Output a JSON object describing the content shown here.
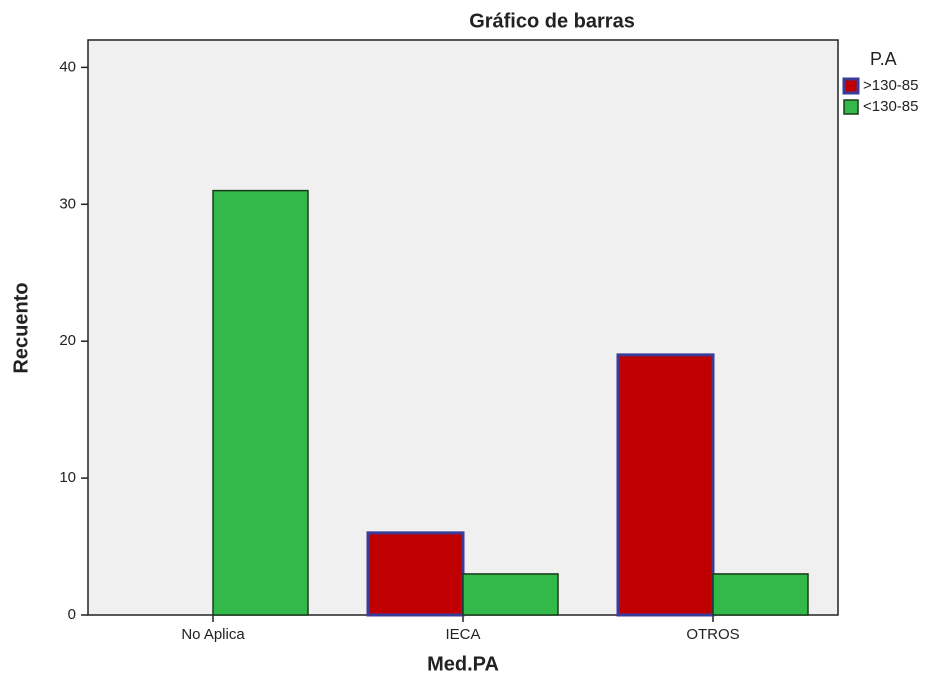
{
  "chart_data": {
    "type": "bar",
    "title": "Gráfico de barras",
    "x_label": "Med.PA",
    "y_label": "Recuento",
    "legend_title": "P.A",
    "legend": "right",
    "categories": [
      "No Aplica",
      "IECA",
      "OTROS"
    ],
    "series": [
      {
        "name": ">130-85",
        "color": "#c00000",
        "values": [
          0,
          6,
          19
        ]
      },
      {
        "name": "<130-85",
        "color": "#33b84a",
        "values": [
          31,
          3,
          3
        ]
      }
    ],
    "ylim": [
      0,
      42
    ],
    "yticks": [
      0,
      10,
      20,
      30,
      40
    ]
  }
}
